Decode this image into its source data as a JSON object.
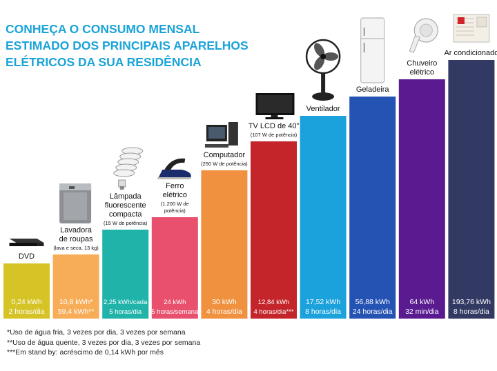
{
  "header": {
    "title_lines": [
      "CONHEÇA O CONSUMO MENSAL",
      "ESTIMADO DOS PRINCIPAIS APARELHOS",
      "ELÉTRICOS DA SUA RESIDÊNCIA"
    ]
  },
  "chart_data": {
    "type": "bar",
    "categories": [
      "DVD",
      "Lavadora de roupas",
      "Lâmpada fluorescente compacta",
      "Ferro elétrico",
      "Computador",
      "TV LCD de 40”",
      "Ventilador",
      "Geladeira",
      "Chuveiro elétrico",
      "Ar condicionado"
    ],
    "values": [
      0.24,
      10.8,
      2.25,
      24,
      30,
      12.84,
      17.52,
      56.88,
      64,
      193.76
    ],
    "unit": "kWh",
    "bars": [
      {
        "name_lines": [
          "DVD"
        ],
        "sub_lines": [],
        "value_lines": [
          "0,24  kWh",
          "2 horas/dia"
        ],
        "color": "#d6c427",
        "value_font": 10.5,
        "icon": "dvd-player-icon"
      },
      {
        "name_lines": [
          "Lavadora",
          "de roupas"
        ],
        "sub_lines": [
          "(lava e seca, 13 kg)"
        ],
        "value_lines": [
          "10,8 kWh*",
          "59,4 kWh**"
        ],
        "color": "#f7ad58",
        "value_font": 10.5,
        "icon": "washing-machine-icon"
      },
      {
        "name_lines": [
          "Lâmpada",
          "fluorescente",
          "compacta"
        ],
        "sub_lines": [
          "(15 W de potência)"
        ],
        "value_lines": [
          "2,25 kWh/cada",
          "5 horas/dia"
        ],
        "color": "#1fb3aa",
        "value_font": 9.5,
        "icon": "cfl-bulb-icon"
      },
      {
        "name_lines": [
          "Ferro",
          "elétrico"
        ],
        "sub_lines": [
          "(1.200 W de",
          "potência)"
        ],
        "value_lines": [
          "24 kWh",
          "5 horas/semana"
        ],
        "color": "#e8506d",
        "value_font": 9.5,
        "icon": "iron-icon"
      },
      {
        "name_lines": [
          "Computador"
        ],
        "sub_lines": [
          "(250 W de potência)"
        ],
        "value_lines": [
          "30 kWh",
          "4 horas/dia"
        ],
        "color": "#f0913f",
        "value_font": 10.5,
        "icon": "computer-icon"
      },
      {
        "name_lines": [
          "TV LCD de 40”"
        ],
        "sub_lines": [
          "(107 W de potência)"
        ],
        "value_lines": [
          "12,84 kWh",
          "4 horas/dia***"
        ],
        "color": "#c4252b",
        "value_font": 9.5,
        "icon": "tv-icon"
      },
      {
        "name_lines": [
          "Ventilador"
        ],
        "sub_lines": [],
        "value_lines": [
          "17,52 kWh",
          "8 horas/dia"
        ],
        "color": "#1ba1dc",
        "value_font": 10.5,
        "icon": "fan-icon"
      },
      {
        "name_lines": [
          "Geladeira"
        ],
        "sub_lines": [],
        "value_lines": [
          "56,88 kWh",
          "24 horas/dia"
        ],
        "color": "#2553b3",
        "value_font": 10.5,
        "icon": "refrigerator-icon"
      },
      {
        "name_lines": [
          "Chuveiro",
          "elétrico"
        ],
        "sub_lines": [],
        "value_lines": [
          "64 kWh",
          "32 min/dia"
        ],
        "color": "#5a1b90",
        "value_font": 10.5,
        "icon": "shower-icon"
      },
      {
        "name_lines": [
          "Ar condicionado"
        ],
        "sub_lines": [],
        "value_lines": [
          "193,76 kWh",
          "8 horas/dia"
        ],
        "color": "#323a63",
        "value_font": 10.5,
        "icon": "air-conditioner-icon"
      }
    ]
  },
  "footnotes": [
    "*Uso de água fria, 3 vezes por dia, 3 vezes por semana",
    "**Uso de água quente, 3 vezes por dia, 3 vezes por semana",
    "***Em stand by: acréscimo de 0,14 kWh por mês"
  ]
}
